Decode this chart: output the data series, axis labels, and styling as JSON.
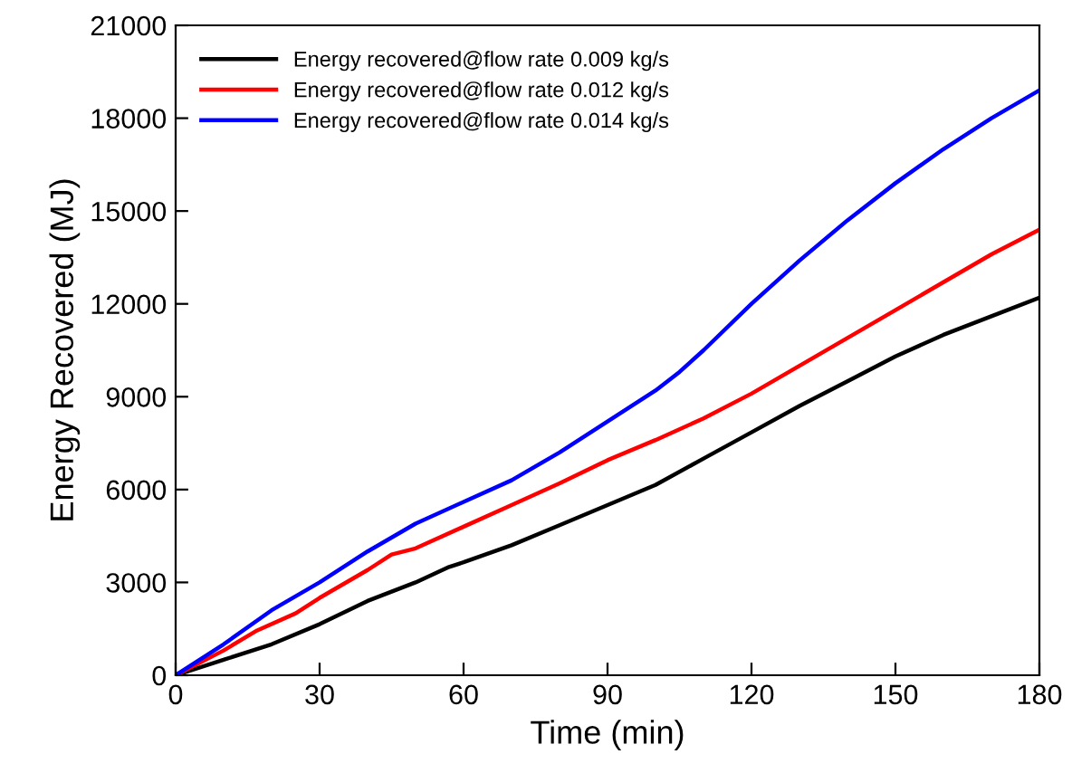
{
  "chart_data": {
    "type": "line",
    "xlabel": "Time (min)",
    "ylabel": "Energy Recovered (MJ)",
    "xlim": [
      0,
      180
    ],
    "xticks": [
      0,
      30,
      60,
      90,
      120,
      150,
      180
    ],
    "ylim": [
      0,
      21000
    ],
    "yticks": [
      0,
      3000,
      6000,
      9000,
      12000,
      15000,
      18000,
      21000
    ],
    "grid": false,
    "legend": "top left",
    "marker": "none",
    "line_style": "solid",
    "series": [
      {
        "name": "Energy recovered@flow rate 0.009 kg/s",
        "color": "#000000",
        "x": [
          0,
          10,
          20,
          30,
          40,
          50,
          57,
          60,
          70,
          80,
          90,
          100,
          110,
          120,
          130,
          140,
          150,
          160,
          170,
          180
        ],
        "values": [
          0,
          500,
          1000,
          1650,
          2400,
          3000,
          3500,
          3650,
          4200,
          4850,
          5500,
          6150,
          7000,
          7850,
          8700,
          9500,
          10300,
          11000,
          11600,
          12200
        ]
      },
      {
        "name": "Energy recovered@flow rate 0.012 kg/s",
        "color": "#ff0000",
        "x": [
          0,
          10,
          17,
          25,
          30,
          40,
          45,
          50,
          60,
          70,
          80,
          90,
          100,
          110,
          120,
          130,
          140,
          150,
          160,
          170,
          180
        ],
        "values": [
          0,
          800,
          1450,
          2000,
          2500,
          3400,
          3900,
          4100,
          4800,
          5500,
          6200,
          6950,
          7600,
          8300,
          9100,
          10000,
          10900,
          11800,
          12700,
          13600,
          14400
        ]
      },
      {
        "name": "Energy recovered@flow rate 0.014 kg/s",
        "color": "#0000ff",
        "x": [
          0,
          10,
          20,
          30,
          40,
          50,
          60,
          70,
          80,
          90,
          100,
          105,
          110,
          120,
          130,
          140,
          150,
          160,
          170,
          180
        ],
        "values": [
          0,
          1000,
          2100,
          3000,
          4000,
          4900,
          5600,
          6300,
          7200,
          8200,
          9200,
          9800,
          10500,
          12000,
          13400,
          14700,
          15900,
          17000,
          18000,
          18900
        ]
      }
    ]
  }
}
